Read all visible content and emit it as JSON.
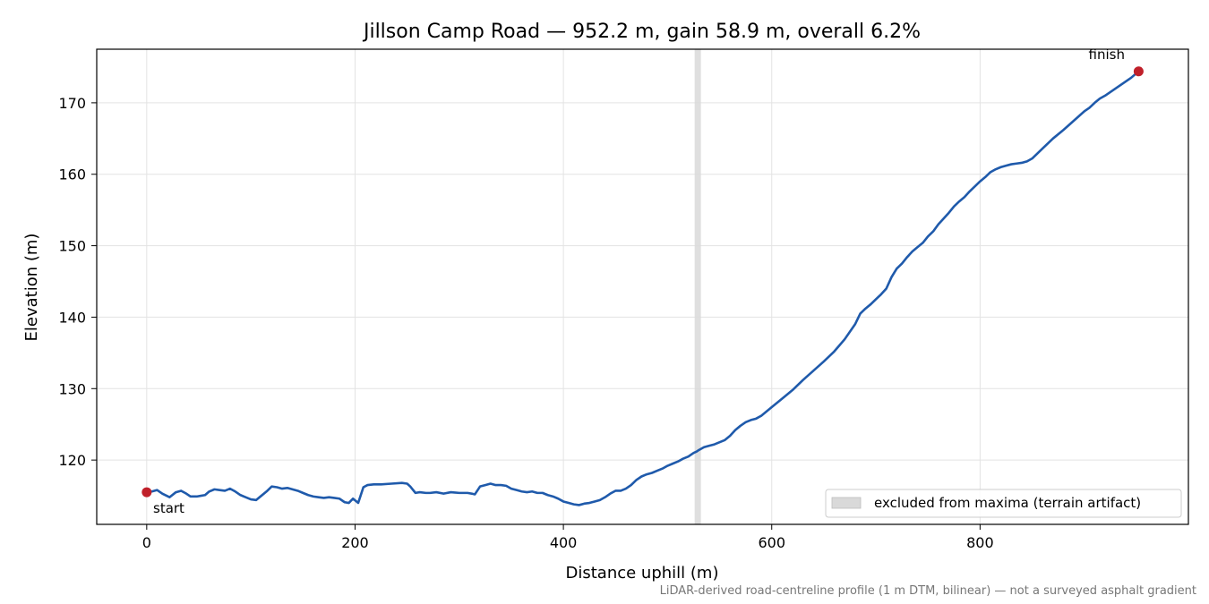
{
  "chart_data": {
    "type": "line",
    "title": "Jillson Camp Road — 952.2 m, gain 58.9 m, overall 6.2%",
    "xlabel": "Distance uphill (m)",
    "ylabel": "Elevation (m)",
    "xlim": [
      -48,
      1000
    ],
    "ylim": [
      111,
      177.5
    ],
    "xticks": [
      0,
      200,
      400,
      600,
      800
    ],
    "yticks": [
      120,
      130,
      140,
      150,
      160,
      170
    ],
    "grid": true,
    "legend_position": "lower-right",
    "legend_label": "excluded from maxima (terrain artifact)",
    "excluded_band": [
      526,
      532
    ],
    "start_label": "start",
    "finish_label": "finish",
    "footnote": "LiDAR-derived road-centreline profile (1 m DTM, bilinear) — not a surveyed asphalt gradient",
    "line_color": "#1f5aab",
    "marker_color": "#c0202a",
    "band_color": "#d9d9d9",
    "series": [
      {
        "x": [
          0,
          5,
          10,
          15,
          22,
          28,
          33,
          38,
          42,
          48,
          52,
          56,
          60,
          65,
          70,
          75,
          80,
          85,
          90,
          95,
          100,
          105,
          110,
          115,
          120,
          125,
          130,
          135,
          140,
          145,
          150,
          155,
          160,
          165,
          170,
          175,
          180,
          185,
          190,
          194,
          198,
          203,
          208,
          212,
          218,
          225,
          235,
          245,
          250,
          253,
          258,
          262,
          268,
          272,
          278,
          285,
          292,
          300,
          308,
          312,
          315,
          320,
          325,
          330,
          335,
          340,
          345,
          350,
          355,
          360,
          365,
          370,
          375,
          380,
          385,
          390,
          395,
          400,
          405,
          410,
          415,
          420,
          425,
          430,
          435,
          440,
          445,
          450,
          455,
          460,
          465,
          470,
          475,
          480,
          485,
          490,
          495,
          500,
          505,
          510,
          515,
          520,
          525,
          528,
          530,
          535,
          540,
          545,
          550,
          555,
          560,
          565,
          570,
          575,
          580,
          585,
          590,
          600,
          610,
          620,
          630,
          640,
          650,
          660,
          670,
          680,
          685,
          690,
          695,
          700,
          705,
          710,
          715,
          720,
          725,
          730,
          735,
          740,
          745,
          750,
          755,
          760,
          765,
          770,
          775,
          780,
          785,
          790,
          795,
          800,
          805,
          810,
          815,
          820,
          825,
          830,
          835,
          840,
          845,
          850,
          860,
          870,
          880,
          890,
          900,
          905,
          910,
          915,
          920,
          925,
          930,
          935,
          940,
          945,
          952.2
        ],
        "y": [
          115.5,
          115.6,
          115.8,
          115.3,
          114.8,
          115.5,
          115.7,
          115.3,
          114.9,
          114.9,
          115.0,
          115.1,
          115.6,
          115.9,
          115.8,
          115.7,
          116.0,
          115.6,
          115.1,
          114.8,
          114.5,
          114.4,
          115.0,
          115.6,
          116.3,
          116.2,
          116.0,
          116.1,
          115.9,
          115.7,
          115.4,
          115.1,
          114.9,
          114.8,
          114.7,
          114.8,
          114.7,
          114.6,
          114.1,
          114.0,
          114.6,
          114.0,
          116.2,
          116.5,
          116.6,
          116.6,
          116.7,
          116.8,
          116.7,
          116.3,
          115.4,
          115.5,
          115.4,
          115.4,
          115.5,
          115.3,
          115.5,
          115.4,
          115.4,
          115.3,
          115.2,
          116.3,
          116.5,
          116.7,
          116.5,
          116.5,
          116.4,
          116.0,
          115.8,
          115.6,
          115.5,
          115.6,
          115.4,
          115.4,
          115.1,
          114.9,
          114.6,
          114.2,
          114.0,
          113.8,
          113.7,
          113.9,
          114.0,
          114.2,
          114.4,
          114.8,
          115.3,
          115.7,
          115.7,
          116.0,
          116.5,
          117.2,
          117.7,
          118.0,
          118.2,
          118.5,
          118.8,
          119.2,
          119.5,
          119.8,
          120.2,
          120.5,
          121.0,
          121.2,
          121.4,
          121.8,
          122.0,
          122.2,
          122.5,
          122.8,
          123.4,
          124.2,
          124.8,
          125.3,
          125.6,
          125.8,
          126.2,
          127.4,
          128.6,
          129.8,
          131.2,
          132.5,
          133.8,
          135.2,
          136.9,
          139.0,
          140.5,
          141.2,
          141.8,
          142.5,
          143.2,
          144.0,
          145.6,
          146.8,
          147.5,
          148.4,
          149.2,
          149.8,
          150.4,
          151.3,
          152.0,
          153.0,
          153.8,
          154.6,
          155.5,
          156.2,
          156.8,
          157.6,
          158.3,
          159.0,
          159.6,
          160.3,
          160.7,
          161.0,
          161.2,
          161.4,
          161.5,
          161.6,
          161.8,
          162.2,
          163.6,
          165.0,
          166.2,
          167.5,
          168.8,
          169.3,
          170.0,
          170.6,
          171.0,
          171.5,
          172.0,
          172.5,
          173.0,
          173.5,
          174.4
        ]
      }
    ]
  }
}
